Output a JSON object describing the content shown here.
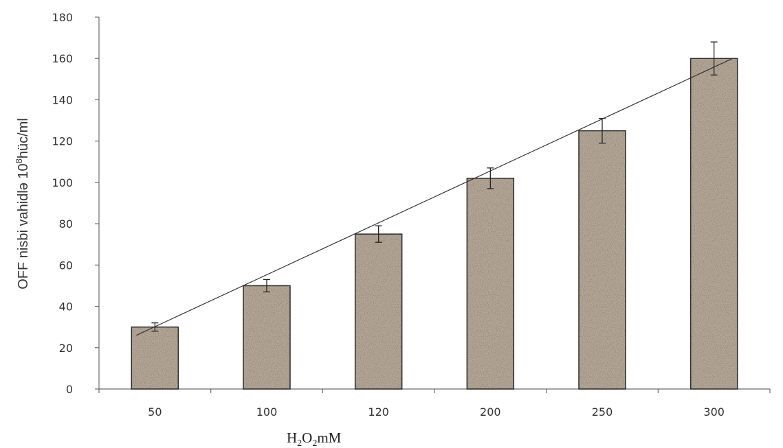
{
  "chart_data": {
    "type": "bar",
    "categories": [
      "50",
      "100",
      "120",
      "200",
      "250",
      "300"
    ],
    "values": [
      30,
      50,
      75,
      102,
      125,
      160
    ],
    "errors": [
      2,
      3,
      4,
      5,
      6,
      8
    ],
    "trendline": {
      "type": "linear",
      "start": 26,
      "end": 160
    },
    "title": "",
    "xlabel": {
      "base1": "H",
      "sub1": "2",
      "base2": "O",
      "sub2": "2",
      "unit": "mM"
    },
    "ylabel": {
      "prefix": "OFF nisbi vahidlə  10",
      "sup": "8",
      "suffix": "hüc/ml"
    },
    "ylim": [
      0,
      180
    ],
    "yticks": [
      0,
      20,
      40,
      60,
      80,
      100,
      120,
      140,
      160,
      180
    ],
    "grid": false,
    "legend": "none",
    "bar_fill": "#a89888",
    "bar_stroke": "#2a2a2a"
  }
}
